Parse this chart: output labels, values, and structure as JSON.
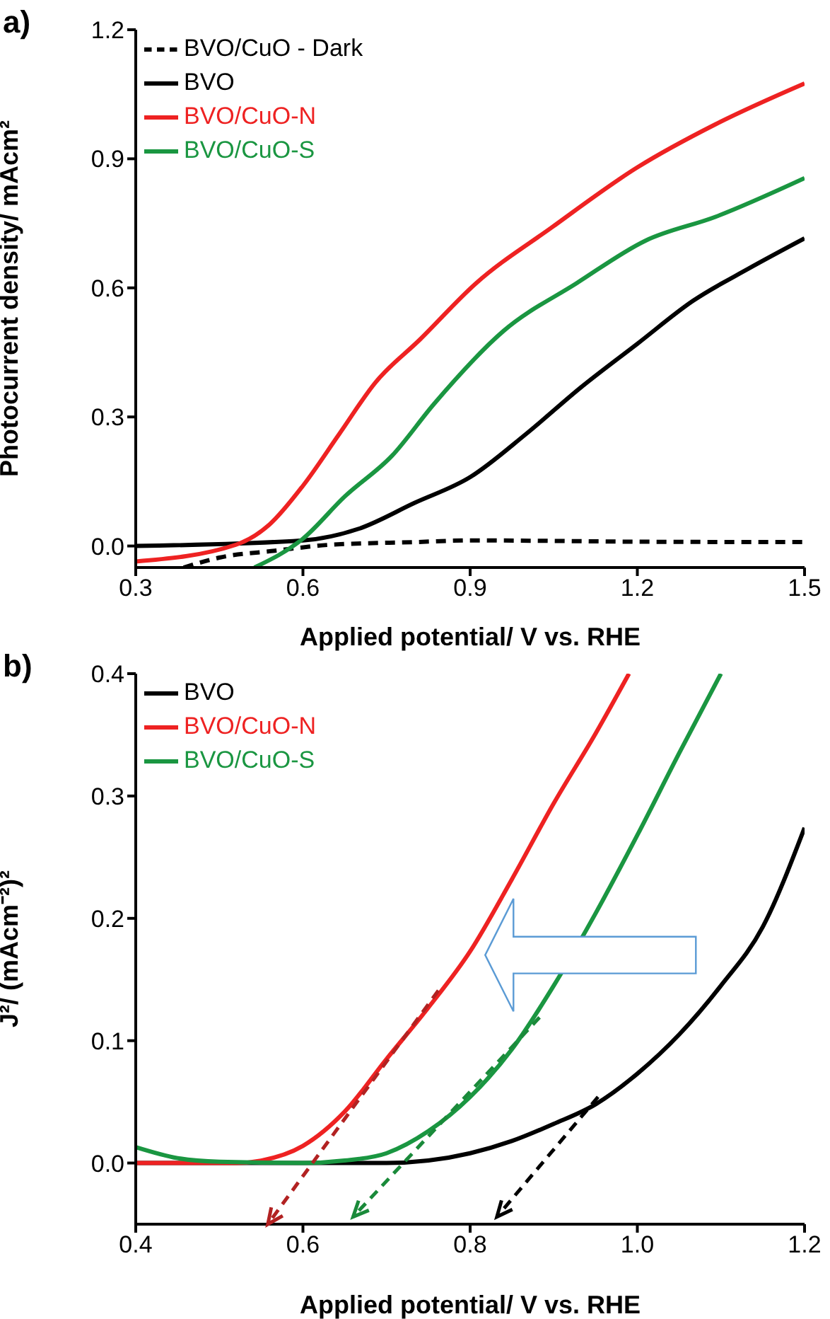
{
  "chart_data": [
    {
      "type": "line",
      "title": "a)",
      "xlabel": "Applied potential/ V vs. RHE",
      "ylabel": "Photocurrent density/ mAcm²",
      "xlim": [
        0.3,
        1.5
      ],
      "ylim": [
        -0.05,
        1.2
      ],
      "xticks": [
        0.3,
        0.6,
        0.9,
        1.2,
        1.5
      ],
      "yticks": [
        {
          "value": 0,
          "label": "0.0"
        },
        0.3,
        0.6,
        0.9,
        1.2
      ],
      "legend": "top left",
      "series": [
        {
          "name": "BVO/CuO - Dark",
          "color": "#000000",
          "line_style": "dashed",
          "x": [
            0.386,
            0.45,
            0.55,
            0.65,
            0.8,
            0.9,
            1.2,
            1.5
          ],
          "values": [
            -0.05,
            -0.027,
            -0.011,
            0.003,
            0.009,
            0.013,
            0.01,
            0.009
          ]
        },
        {
          "name": "BVO",
          "color": "#000000",
          "line_style": "solid",
          "x": [
            0.3,
            0.6,
            0.7,
            0.8,
            0.9,
            1.0,
            1.1,
            1.2,
            1.3,
            1.4,
            1.5
          ],
          "values": [
            0.0,
            0.013,
            0.04,
            0.1,
            0.16,
            0.26,
            0.37,
            0.47,
            0.57,
            0.645,
            0.715
          ]
        },
        {
          "name": "BVO/CuO-N",
          "color": "#ee2222",
          "line_style": "solid",
          "x": [
            0.3,
            0.48,
            0.54,
            0.6,
            0.665,
            0.73,
            0.81,
            0.91,
            1.046,
            1.2,
            1.34,
            1.5
          ],
          "values": [
            -0.036,
            0.003,
            0.05,
            0.14,
            0.26,
            0.38,
            0.48,
            0.61,
            0.74,
            0.88,
            0.98,
            1.075
          ]
        },
        {
          "name": "BVO/CuO-S",
          "color": "#1a9641",
          "line_style": "solid",
          "x": [
            0.513,
            0.6,
            0.675,
            0.76,
            0.835,
            0.96,
            1.09,
            1.215,
            1.34,
            1.5
          ],
          "values": [
            -0.05,
            0.017,
            0.115,
            0.21,
            0.33,
            0.5,
            0.61,
            0.71,
            0.765,
            0.855
          ]
        }
      ]
    },
    {
      "type": "line",
      "title": "b)",
      "xlabel": "Applied potential/ V vs. RHE",
      "ylabel": "J²/ (mAcm⁻²)²",
      "xlim": [
        0.4,
        1.2
      ],
      "ylim": [
        -0.05,
        0.4
      ],
      "xticks": [
        0.4,
        0.6,
        0.8,
        {
          "value": 1.0,
          "label": "1.0"
        },
        1.2
      ],
      "yticks": [
        {
          "value": 0,
          "label": "0.0"
        },
        0.1,
        0.2,
        0.3,
        0.4
      ],
      "legend": "top left",
      "series": [
        {
          "name": "BVO",
          "color": "#000000",
          "line_style": "solid",
          "x": [
            0.4,
            0.7,
            0.75,
            0.8,
            0.85,
            0.9,
            0.95,
            1.0,
            1.05,
            1.1,
            1.15,
            1.2
          ],
          "values": [
            0,
            0,
            0.002,
            0.008,
            0.018,
            0.032,
            0.048,
            0.073,
            0.105,
            0.145,
            0.193,
            0.274
          ]
        },
        {
          "name": "BVO/CuO-N",
          "color": "#ee2222",
          "line_style": "solid",
          "x": [
            0.4,
            0.52,
            0.55,
            0.6,
            0.65,
            0.7,
            0.75,
            0.8,
            0.85,
            0.9,
            0.95,
            0.99
          ],
          "values": [
            0,
            0,
            0.002,
            0.014,
            0.042,
            0.085,
            0.127,
            0.173,
            0.232,
            0.294,
            0.351,
            0.4
          ]
        },
        {
          "name": "BVO/CuO-S",
          "color": "#1a9641",
          "line_style": "solid",
          "x": [
            0.4,
            0.45,
            0.5,
            0.6,
            0.65,
            0.7,
            0.75,
            0.8,
            0.85,
            0.9,
            0.95,
            1.0,
            1.05,
            1.1
          ],
          "values": [
            0.013,
            0.004,
            0.001,
            0,
            0.002,
            0.008,
            0.026,
            0.054,
            0.093,
            0.145,
            0.204,
            0.268,
            0.335,
            0.4
          ]
        }
      ]
    }
  ]
}
